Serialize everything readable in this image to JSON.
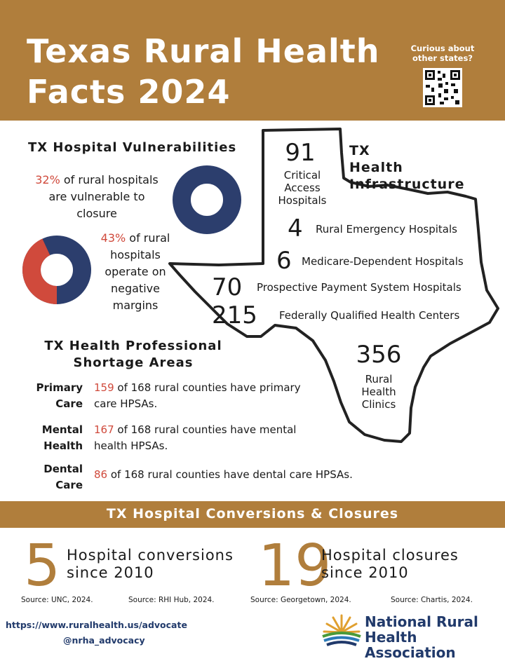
{
  "header": {
    "title_line1": "Texas Rural Health",
    "title_line2": "Facts 2024",
    "qr_prompt_line1": "Curious about",
    "qr_prompt_line2": "other states?"
  },
  "vulnerabilities": {
    "title": "TX Hospital Vulnerabilities",
    "items": [
      {
        "percent": "32%",
        "text_line1": " of rural hospitals",
        "text_line2": "are vulnerable to",
        "text_line3": "closure",
        "fraction": 0.32
      },
      {
        "percent": "43%",
        "text_line1": " of rural",
        "text_line2": "hospitals",
        "text_line3": "operate on",
        "text_line4": "negative",
        "text_line5": "margins",
        "fraction": 0.43
      }
    ],
    "colors": {
      "primary": "#2c3e6d",
      "accent": "#d04a3c"
    }
  },
  "infrastructure": {
    "title_line1": "TX",
    "title_line2": "Health",
    "title_line3": "Infrastructure",
    "items": [
      {
        "value": "91",
        "label_line1": "Critical",
        "label_line2": "Access",
        "label_line3": "Hospitals"
      },
      {
        "value": "4",
        "label": "Rural Emergency Hospitals"
      },
      {
        "value": "6",
        "label": "Medicare-Dependent Hospitals"
      },
      {
        "value": "70",
        "label": "Prospective Payment System Hospitals"
      },
      {
        "value": "215",
        "label": "Federally Qualified Health Centers"
      },
      {
        "value": "356",
        "label_line1": "Rural",
        "label_line2": "Health",
        "label_line3": "Clinics"
      }
    ]
  },
  "hpsa": {
    "title_line1": "TX Health Professional",
    "title_line2": "Shortage Areas",
    "rows": [
      {
        "label_line1": "Primary",
        "label_line2": "Care",
        "count": "159",
        "text_line1": " of 168 rural counties have primary",
        "text_line2": "care HPSAs."
      },
      {
        "label_line1": "Mental",
        "label_line2": "Health",
        "count": "167",
        "text_line1": " of 168 rural counties have mental",
        "text_line2": "health HPSAs."
      },
      {
        "label_line1": "Dental",
        "label_line2": "Care",
        "count": "86",
        "text_line1": " of 168 rural counties have dental care HPSAs."
      }
    ]
  },
  "conversions": {
    "title": "TX Hospital Conversions & Closures",
    "items": [
      {
        "value": "5",
        "text_line1": "Hospital conversions",
        "text_line2": "since 2010"
      },
      {
        "value": "19",
        "text_line1": "Hospital closures",
        "text_line2": "since 2010"
      }
    ],
    "sources": [
      "Source: UNC, 2024.",
      "Source: RHI Hub, 2024.",
      "Source: Georgetown, 2024.",
      "Source: Chartis, 2024."
    ]
  },
  "footer": {
    "url": "https://www.ruralhealth.us/advocate",
    "handle": "@nrha_advocacy",
    "org_line1": "National Rural",
    "org_line2": "Health Association"
  }
}
